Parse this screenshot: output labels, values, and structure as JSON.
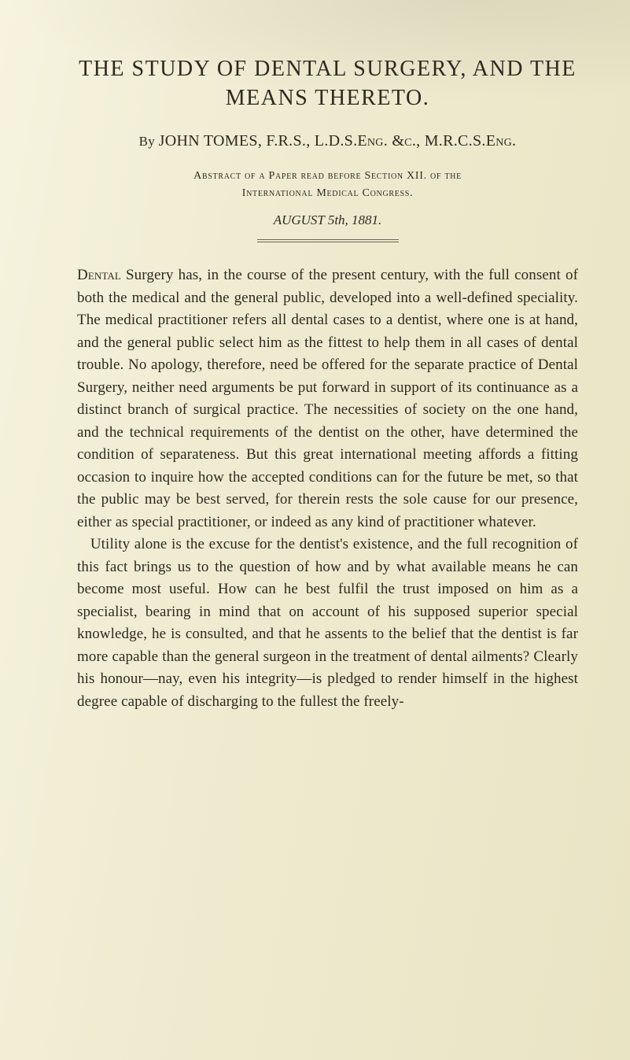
{
  "colors": {
    "text": "#2c2a20",
    "background_light": "#f6f3df",
    "background_dark": "#e9e4c4",
    "rule": "#6b6650"
  },
  "typography": {
    "family": "Georgia, 'Times New Roman', serif",
    "title_fontsize_pt": 21,
    "byline_fontsize_pt": 15,
    "abstract_fontsize_pt": 10.5,
    "date_fontsize_pt": 12.5,
    "body_fontsize_pt": 14,
    "body_lineheight": 1.5
  },
  "title": {
    "line1": "THE STUDY OF DENTAL SURGERY, AND THE",
    "line2": "MEANS THERETO."
  },
  "byline": {
    "by": "By ",
    "text": "JOHN TOMES, F.R.S., L.D.S.Eng. &c., M.R.C.S.Eng."
  },
  "abstract": {
    "line1": "Abstract of a Paper read before Section XII. of the",
    "line2": "International Medical Congress."
  },
  "date": "AUGUST 5th, 1881.",
  "body": {
    "lead_smallcaps": "Dental",
    "para1_rest": " Surgery has, in the course of the present century, with the full consent of both the medical and the general public, developed into a well-defined speciality. The medical practitioner refers all dental cases to a dentist, where one is at hand, and the general public select him as the fittest to help them in all cases of dental trouble. No apology, therefore, need be offered for the separate practice of Dental Surgery, neither need arguments be put forward in support of its continuance as a distinct branch of surgical practice. The necessities of society on the one hand, and the technical requirements of the dentist on the other, have determined the condition of separateness. But this great international meeting affords a fitting occasion to inquire how the accepted conditions can for the future be met, so that the public may be best served, for therein rests the sole cause for our presence, either as special practitioner, or indeed as any kind of practitioner whatever.",
    "para2": "Utility alone is the excuse for the dentist's existence, and the full recognition of this fact brings us to the question of how and by what available means he can become most useful. How can he best fulfil the trust imposed on him as a specialist, bearing in mind that on account of his supposed superior special knowledge, he is consulted, and that he assents to the belief that the dentist is far more capable than the general surgeon in the treatment of dental ailments? Clearly his honour—nay, even his integrity—is pledged to render himself in the highest degree capable of discharging to the fullest the freely-"
  }
}
